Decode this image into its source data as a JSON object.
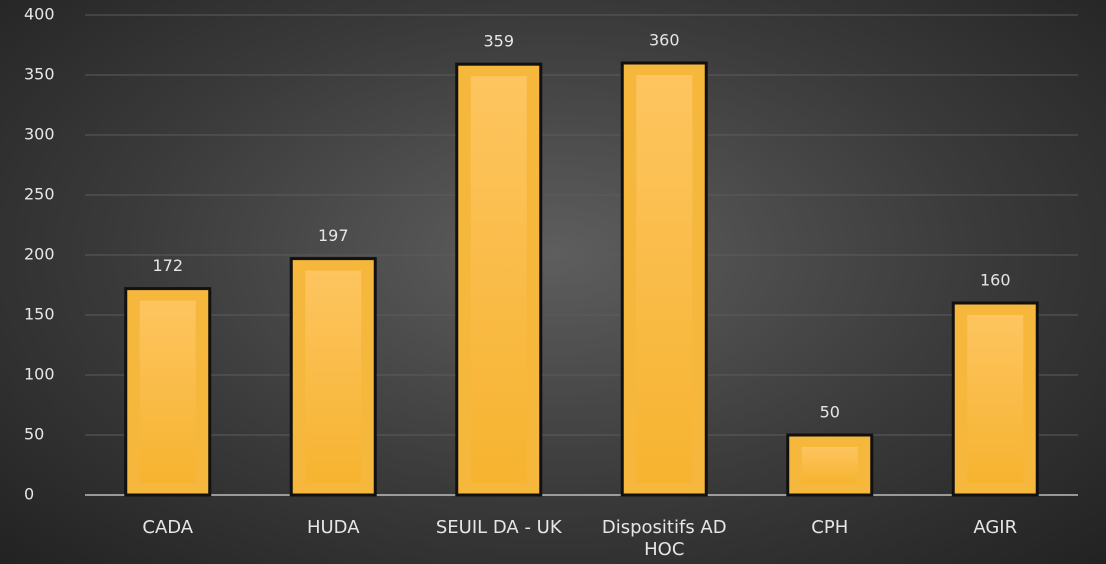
{
  "chart_data": {
    "type": "bar",
    "categories": [
      "CADA",
      "HUDA",
      "SEUIL DA - UK",
      "Dispositifs AD HOC",
      "CPH",
      "AGIR"
    ],
    "values": [
      172,
      197,
      359,
      360,
      50,
      160
    ],
    "color": "#f5b73c",
    "ylim": [
      0,
      400
    ],
    "yticks": [
      0,
      50,
      100,
      150,
      200,
      250,
      300,
      350,
      400
    ],
    "grid": true
  }
}
